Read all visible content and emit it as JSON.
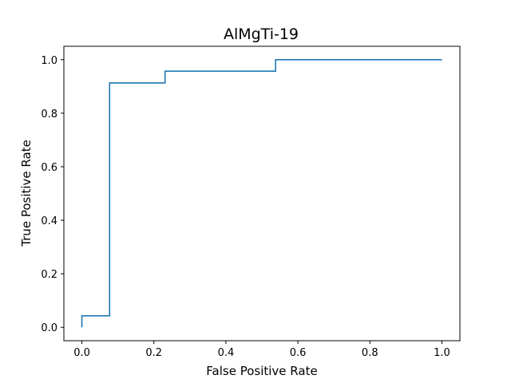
{
  "chart_data": {
    "type": "line",
    "title": "AlMgTi-19",
    "xlabel": "False Positive Rate",
    "ylabel": "True Positive Rate",
    "xlim": [
      -0.05,
      1.05
    ],
    "ylim": [
      -0.05,
      1.05
    ],
    "xticks": [
      0.0,
      0.2,
      0.4,
      0.6,
      0.8,
      1.0
    ],
    "yticks": [
      0.0,
      0.2,
      0.4,
      0.6,
      0.8,
      1.0
    ],
    "xtick_labels": [
      "0.0",
      "0.2",
      "0.4",
      "0.6",
      "0.8",
      "1.0"
    ],
    "ytick_labels": [
      "0.0",
      "0.2",
      "0.4",
      "0.6",
      "0.8",
      "1.0"
    ],
    "grid": false,
    "series": [
      {
        "color": "#1f77b4",
        "x": [
          0.0,
          0.0,
          0.077,
          0.077,
          0.231,
          0.231,
          0.538,
          0.538,
          1.0
        ],
        "y": [
          0.0,
          0.043,
          0.043,
          0.913,
          0.913,
          0.957,
          0.957,
          1.0,
          1.0
        ]
      }
    ]
  }
}
